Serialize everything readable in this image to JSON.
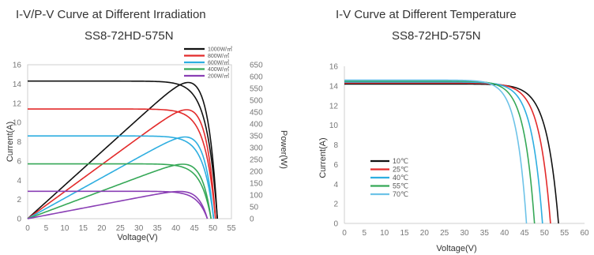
{
  "chart_data": [
    {
      "type": "line",
      "title": "I-V/P-V Curve at Different Irradiation",
      "subtitle": "SS8-72HD-575N",
      "xlabel": "Voltage(V)",
      "ylabel": "Current(A)",
      "y2label": "Power(W)",
      "xlim": [
        0,
        55
      ],
      "ylim": [
        0,
        16
      ],
      "y2lim": [
        0,
        650
      ],
      "xticks": [
        "0",
        "5",
        "10",
        "15",
        "20",
        "25",
        "30",
        "35",
        "40",
        "45",
        "50",
        "55"
      ],
      "yticks": [
        "0",
        "2",
        "4",
        "6",
        "8",
        "10",
        "12",
        "14",
        "16"
      ],
      "y2ticks": [
        "0",
        "50",
        "100",
        "150",
        "200",
        "250",
        "300",
        "350",
        "400",
        "450",
        "500",
        "550",
        "600",
        "650"
      ],
      "legend_position": "top-right",
      "series": [
        {
          "name": "1000W/㎡",
          "color": "#111111",
          "isc": 14.3,
          "voc": 51.2,
          "vmp": 42.0,
          "imp": 13.7,
          "pmax": 575
        },
        {
          "name": "800W/㎡",
          "color": "#e32b2b",
          "isc": 11.4,
          "voc": 50.7,
          "vmp": 42.0,
          "imp": 10.9,
          "pmax": 460
        },
        {
          "name": "600W/㎡",
          "color": "#2eaee0",
          "isc": 8.6,
          "voc": 50.2,
          "vmp": 41.5,
          "imp": 8.2,
          "pmax": 345
        },
        {
          "name": "400W/㎡",
          "color": "#36a857",
          "isc": 5.7,
          "voc": 49.5,
          "vmp": 41.0,
          "imp": 5.5,
          "pmax": 230
        },
        {
          "name": "200W/㎡",
          "color": "#8a3fb5",
          "isc": 2.85,
          "voc": 48.5,
          "vmp": 40.5,
          "imp": 2.75,
          "pmax": 115
        }
      ]
    },
    {
      "type": "line",
      "title": "I-V Curve at Different Temperature",
      "subtitle": "SS8-72HD-575N",
      "xlabel": "Voltage(V)",
      "ylabel": "Current(A)",
      "xlim": [
        0,
        60
      ],
      "ylim": [
        0,
        16
      ],
      "xticks": [
        "0",
        "5",
        "10",
        "15",
        "20",
        "25",
        "30",
        "35",
        "40",
        "45",
        "50",
        "55",
        "60"
      ],
      "yticks": [
        "0",
        "2",
        "4",
        "6",
        "8",
        "10",
        "12",
        "14",
        "16"
      ],
      "legend_position": "bottom-left",
      "series": [
        {
          "name": "10℃",
          "color": "#111111",
          "isc": 14.2,
          "voc": 53.5
        },
        {
          "name": "25℃",
          "color": "#e32b2b",
          "isc": 14.3,
          "voc": 51.5
        },
        {
          "name": "40℃",
          "color": "#2eaee0",
          "isc": 14.4,
          "voc": 49.5
        },
        {
          "name": "55℃",
          "color": "#36a857",
          "isc": 14.5,
          "voc": 47.5
        },
        {
          "name": "70℃",
          "color": "#6ec3e8",
          "isc": 14.6,
          "voc": 45.5
        }
      ]
    }
  ]
}
